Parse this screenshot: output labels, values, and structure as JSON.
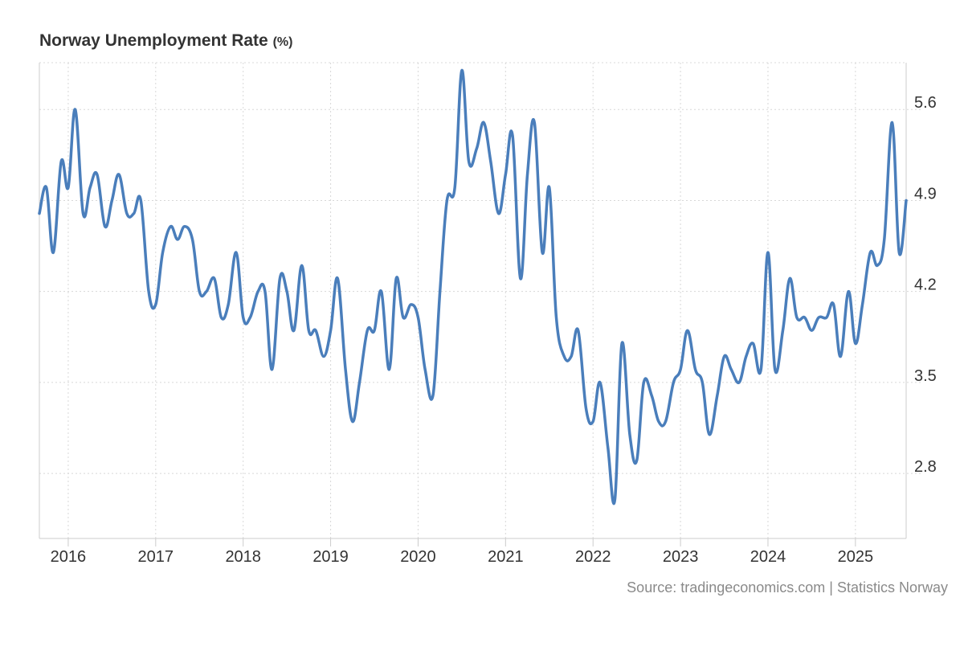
{
  "title": "Norway Unemployment Rate",
  "title_unit": "(%)",
  "source": "Source: tradingeconomics.com | Statistics Norway",
  "colors": {
    "line": "#4a7ebb",
    "grid": "#d8d8d8",
    "axis": "#cccccc",
    "label": "#333333",
    "source": "#8a8a8a"
  },
  "chart_data": {
    "type": "line",
    "title": "Norway Unemployment Rate (%)",
    "xlabel": "",
    "ylabel": "",
    "grid": true,
    "y_axis_side": "right",
    "ylim": [
      2.3,
      5.96
    ],
    "y_ticks": [
      2.8,
      3.5,
      4.2,
      4.9,
      5.6
    ],
    "y_tick_labels": [
      "2.8",
      "3.5",
      "4.2",
      "4.9",
      "5.6"
    ],
    "x_start": 2015.67,
    "x_end": 2025.58,
    "x_ticks": [
      2016,
      2017,
      2018,
      2019,
      2020,
      2021,
      2022,
      2023,
      2024,
      2025
    ],
    "x_tick_labels": [
      "2016",
      "2017",
      "2018",
      "2019",
      "2020",
      "2021",
      "2022",
      "2023",
      "2024",
      "2025"
    ],
    "series": [
      {
        "name": "Unemployment Rate",
        "x": [
          2015.67,
          2015.75,
          2015.83,
          2015.92,
          2016.0,
          2016.08,
          2016.17,
          2016.25,
          2016.33,
          2016.42,
          2016.5,
          2016.58,
          2016.67,
          2016.75,
          2016.83,
          2016.92,
          2017.0,
          2017.08,
          2017.17,
          2017.25,
          2017.33,
          2017.42,
          2017.5,
          2017.58,
          2017.67,
          2017.75,
          2017.83,
          2017.92,
          2018.0,
          2018.08,
          2018.17,
          2018.25,
          2018.33,
          2018.42,
          2018.5,
          2018.58,
          2018.67,
          2018.75,
          2018.83,
          2018.92,
          2019.0,
          2019.08,
          2019.17,
          2019.25,
          2019.33,
          2019.42,
          2019.5,
          2019.58,
          2019.67,
          2019.75,
          2019.83,
          2019.92,
          2020.0,
          2020.08,
          2020.17,
          2020.25,
          2020.33,
          2020.42,
          2020.5,
          2020.58,
          2020.67,
          2020.75,
          2020.83,
          2020.92,
          2021.0,
          2021.08,
          2021.17,
          2021.25,
          2021.33,
          2021.42,
          2021.5,
          2021.58,
          2021.67,
          2021.75,
          2021.83,
          2021.92,
          2022.0,
          2022.08,
          2022.17,
          2022.25,
          2022.33,
          2022.42,
          2022.5,
          2022.58,
          2022.67,
          2022.75,
          2022.83,
          2022.92,
          2023.0,
          2023.08,
          2023.17,
          2023.25,
          2023.33,
          2023.42,
          2023.5,
          2023.58,
          2023.67,
          2023.75,
          2023.83,
          2023.92,
          2024.0,
          2024.08,
          2024.17,
          2024.25,
          2024.33,
          2024.42,
          2024.5,
          2024.58,
          2024.67,
          2024.75,
          2024.83,
          2024.92,
          2025.0,
          2025.08,
          2025.17,
          2025.25,
          2025.33,
          2025.42,
          2025.5,
          2025.58
        ],
        "values": [
          4.8,
          5.0,
          4.5,
          5.2,
          5.0,
          5.6,
          4.8,
          5.0,
          5.1,
          4.7,
          4.9,
          5.1,
          4.8,
          4.8,
          4.9,
          4.2,
          4.1,
          4.5,
          4.7,
          4.6,
          4.7,
          4.6,
          4.2,
          4.2,
          4.3,
          4.0,
          4.1,
          4.5,
          4.0,
          4.0,
          4.2,
          4.2,
          3.6,
          4.3,
          4.2,
          3.9,
          4.4,
          3.9,
          3.9,
          3.7,
          3.9,
          4.3,
          3.6,
          3.2,
          3.5,
          3.9,
          3.9,
          4.2,
          3.6,
          4.3,
          4.0,
          4.1,
          4.0,
          3.6,
          3.4,
          4.2,
          4.9,
          5.0,
          5.9,
          5.2,
          5.3,
          5.5,
          5.2,
          4.8,
          5.1,
          5.4,
          4.3,
          5.1,
          5.5,
          4.5,
          5.0,
          4.0,
          3.7,
          3.7,
          3.9,
          3.3,
          3.2,
          3.5,
          3.0,
          2.6,
          3.8,
          3.1,
          2.9,
          3.5,
          3.4,
          3.2,
          3.2,
          3.5,
          3.6,
          3.9,
          3.6,
          3.5,
          3.1,
          3.4,
          3.7,
          3.6,
          3.5,
          3.7,
          3.8,
          3.6,
          4.5,
          3.6,
          3.9,
          4.3,
          4.0,
          4.0,
          3.9,
          4.0,
          4.0,
          4.1,
          3.7,
          4.2,
          3.8,
          4.1,
          4.5,
          4.4,
          4.6,
          5.5,
          4.5,
          4.9
        ]
      }
    ]
  }
}
